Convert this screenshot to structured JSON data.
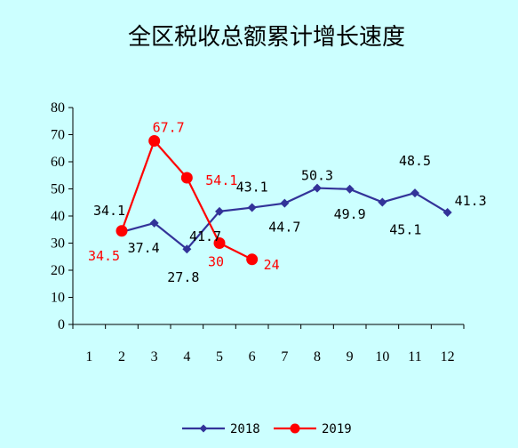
{
  "chart_data": {
    "type": "line",
    "title": "全区税收总额累计增长速度",
    "categories": [
      "1",
      "2",
      "3",
      "4",
      "5",
      "6",
      "7",
      "8",
      "9",
      "10",
      "11",
      "12"
    ],
    "ylim": [
      0,
      80
    ],
    "yticks": [
      "0",
      "10",
      "20",
      "30",
      "40",
      "50",
      "60",
      "70",
      "80"
    ],
    "grid": false,
    "legend_position": "bottom",
    "series": [
      {
        "name": "2018",
        "color": "#333399",
        "marker": "diamond",
        "x": [
          "2",
          "3",
          "4",
          "5",
          "6",
          "7",
          "8",
          "9",
          "10",
          "11",
          "12"
        ],
        "values": [
          34.1,
          37.4,
          27.8,
          41.7,
          43.1,
          44.7,
          50.3,
          49.9,
          45.1,
          48.5,
          41.3
        ],
        "labels": [
          "34.1",
          "37.4",
          "27.8",
          "41.7",
          "43.1",
          "44.7",
          "50.3",
          "49.9",
          "45.1",
          "48.5",
          "41.3"
        ]
      },
      {
        "name": "2019",
        "color": "#ff0000",
        "marker": "circle",
        "x": [
          "2",
          "3",
          "4",
          "5",
          "6"
        ],
        "values": [
          34.5,
          67.7,
          54.1,
          30,
          24
        ],
        "labels": [
          "34.5",
          "67.7",
          "54.1",
          "30",
          "24"
        ]
      }
    ]
  }
}
